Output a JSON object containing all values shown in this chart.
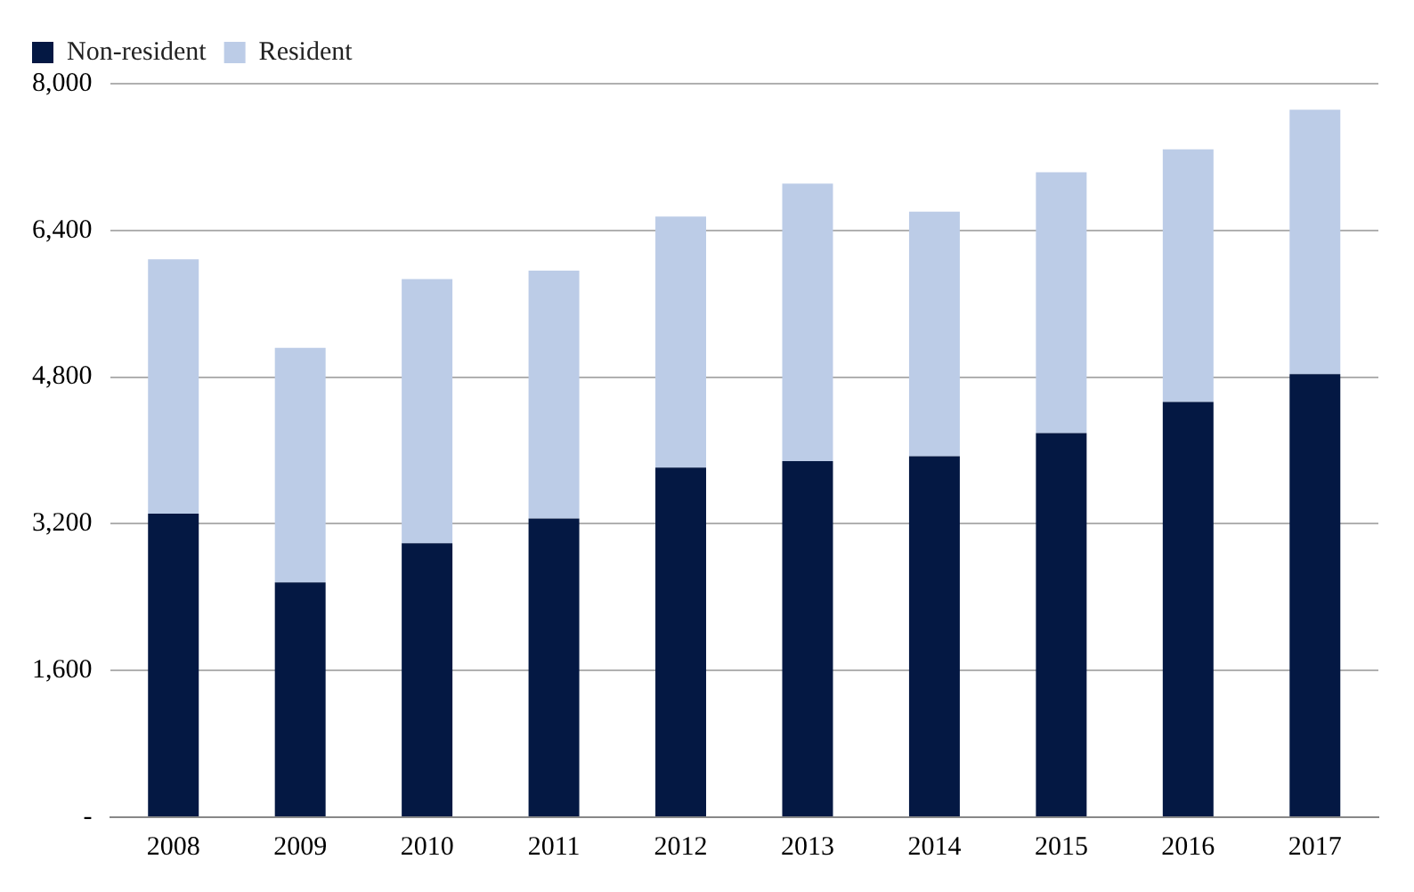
{
  "chart_data": {
    "type": "bar",
    "stacked": true,
    "categories": [
      "2008",
      "2009",
      "2010",
      "2011",
      "2012",
      "2013",
      "2014",
      "2015",
      "2016",
      "2017"
    ],
    "series": [
      {
        "name": "Non-resident",
        "color": "#041843",
        "values": [
          3311,
          2560,
          2989,
          3258,
          3812,
          3884,
          3938,
          4189,
          4529,
          4833
        ]
      },
      {
        "name": "Resident",
        "color": "#bccce7",
        "values": [
          2774,
          2559,
          2881,
          2702,
          2739,
          3025,
          2667,
          2846,
          2756,
          2882
        ]
      }
    ],
    "ylim": [
      0,
      8000
    ],
    "yticks": [
      {
        "value": 0,
        "label": "-"
      },
      {
        "value": 1600,
        "label": "1,600"
      },
      {
        "value": 3200,
        "label": "3,200"
      },
      {
        "value": 4800,
        "label": "4,800"
      },
      {
        "value": 6400,
        "label": "6,400"
      },
      {
        "value": 8000,
        "label": "8,000"
      }
    ],
    "grid": "y",
    "legend": "top left"
  }
}
